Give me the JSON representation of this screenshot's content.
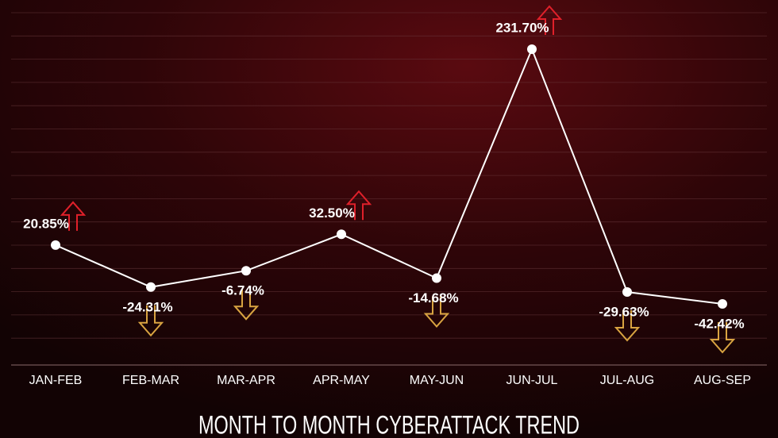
{
  "chart_data": {
    "type": "line",
    "title": "MONTH TO MONTH CYBERATTACK TREND",
    "categories": [
      "JAN-FEB",
      "FEB-MAR",
      "MAR-APR",
      "APR-MAY",
      "MAY-JUN",
      "JUN-JUL",
      "JUL-AUG",
      "AUG-SEP"
    ],
    "values": [
      20.85,
      -24.31,
      -6.74,
      32.5,
      -14.68,
      231.7,
      -29.63,
      -42.42
    ],
    "value_labels": [
      "20.85%",
      "-24.31%",
      "-6.74%",
      "32.50%",
      "-14.68%",
      "231.70%",
      "-29.63%",
      "-42.42%"
    ],
    "color": "#ffffff",
    "up_color": "#e0202a",
    "down_color": "#d9a441"
  }
}
